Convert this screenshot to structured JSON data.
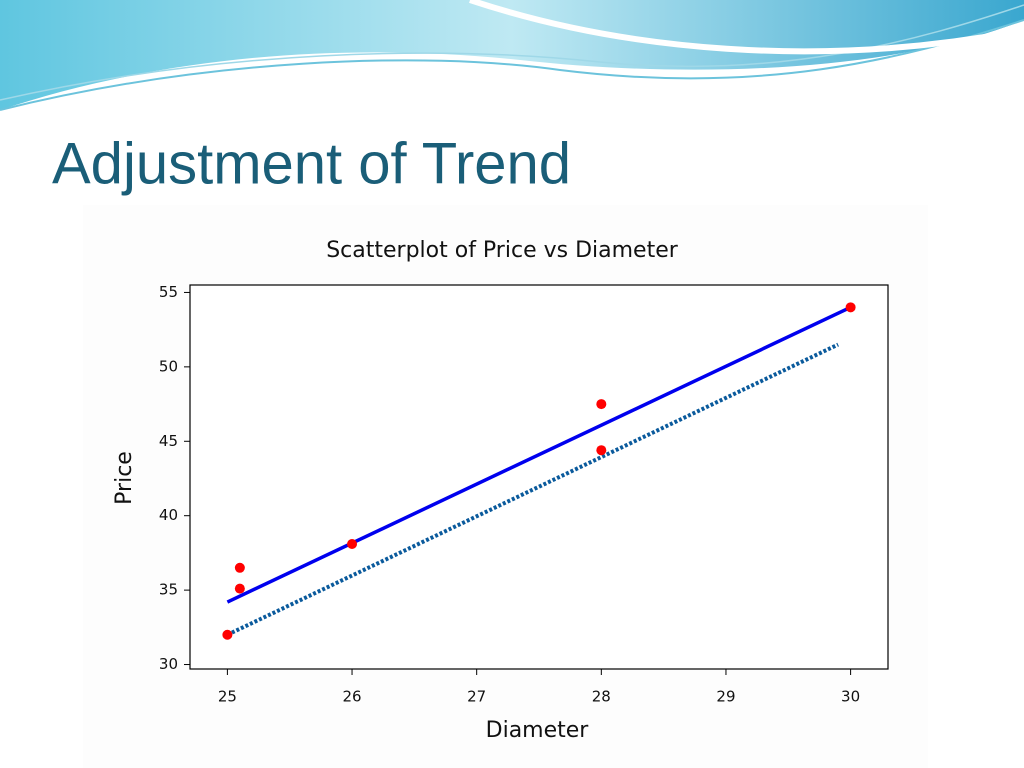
{
  "slide_title": "Adjustment of Trend",
  "chart_data": {
    "type": "scatter",
    "title": "Scatterplot of Price vs Diameter",
    "x_label": "Diameter",
    "y_label": "Price",
    "xlim": [
      24.7,
      30.3
    ],
    "ylim": [
      29.7,
      55.5
    ],
    "xticks": [
      25,
      26,
      27,
      28,
      29,
      30
    ],
    "yticks": [
      30,
      35,
      40,
      45,
      50,
      55
    ],
    "points": {
      "color": "#ff0000",
      "x": [
        25,
        25.1,
        25.1,
        26,
        28,
        28,
        30
      ],
      "values": [
        32,
        35.1,
        36.5,
        38.1,
        47.5,
        44.4,
        54
      ]
    },
    "lines": [
      {
        "color": "#0000ee",
        "style": "solid",
        "x": [
          25,
          30
        ],
        "values": [
          34.2,
          54
        ]
      },
      {
        "color": "#0a5a9c",
        "style": "dotted",
        "x": [
          25,
          29.9
        ],
        "values": [
          32,
          51.5
        ]
      }
    ]
  }
}
